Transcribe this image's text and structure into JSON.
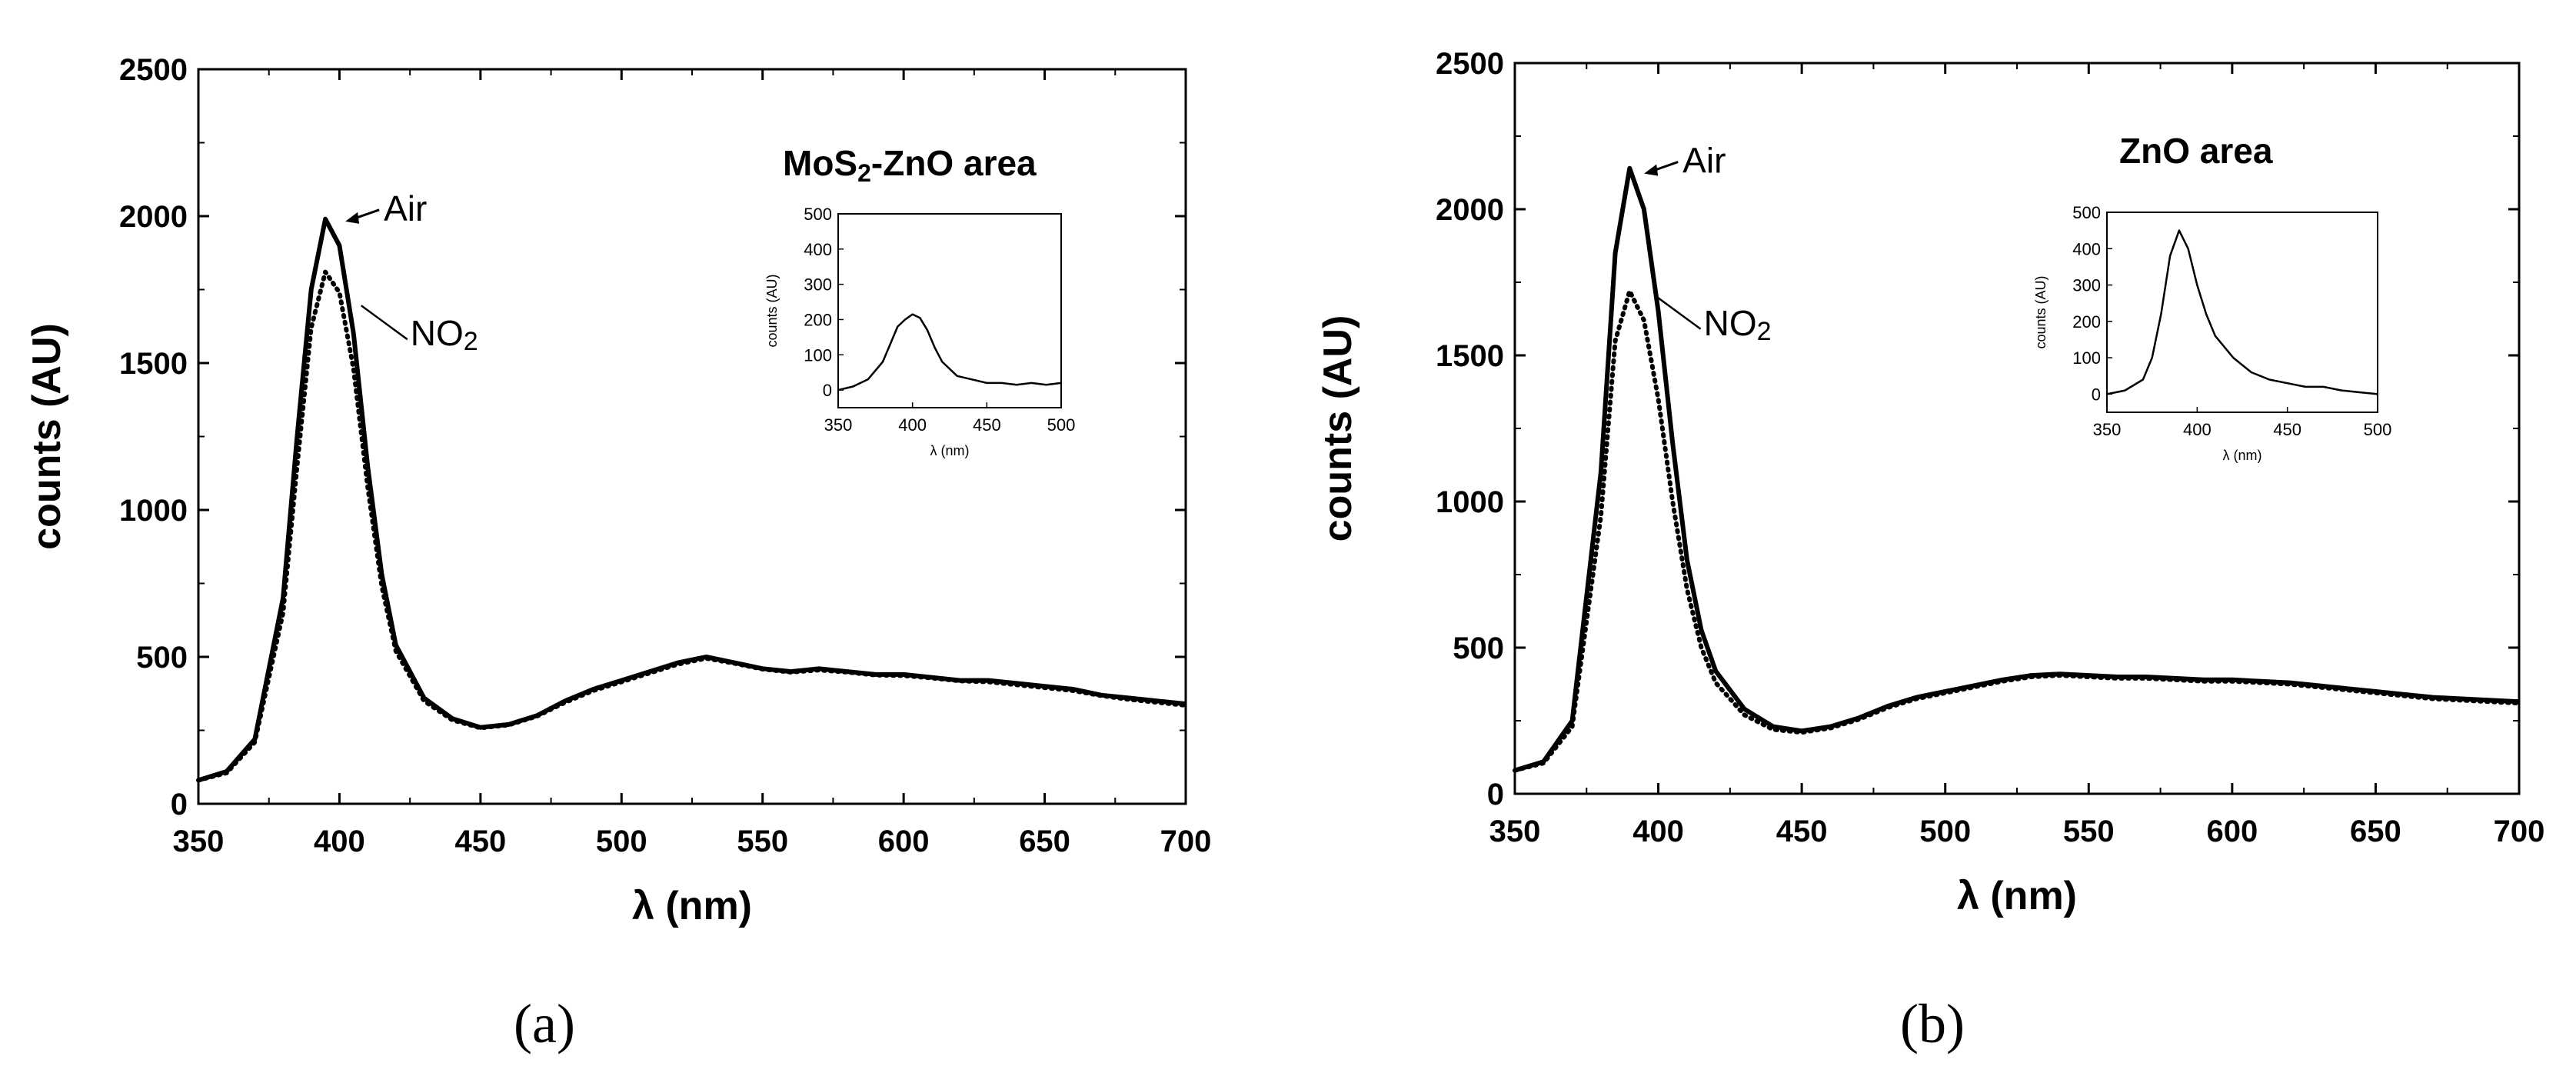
{
  "chart_data": [
    {
      "type": "line",
      "panel_label": "(a)",
      "title": "MoS2-ZnO area",
      "title_main": "MoS",
      "title_sub": "2",
      "title_rest": "-ZnO area",
      "xlabel": "λ (nm)",
      "ylabel": "counts (AU)",
      "xlim": [
        350,
        700
      ],
      "ylim": [
        0,
        2500
      ],
      "xticks": [
        350,
        400,
        450,
        500,
        550,
        600,
        650,
        700
      ],
      "yticks": [
        0,
        500,
        1000,
        1500,
        2000,
        2500
      ],
      "grid": false,
      "series": [
        {
          "name": "Air",
          "style": "solid",
          "x": [
            350,
            360,
            370,
            380,
            385,
            390,
            395,
            400,
            405,
            410,
            415,
            420,
            430,
            440,
            450,
            460,
            470,
            480,
            490,
            500,
            510,
            520,
            530,
            540,
            550,
            560,
            570,
            580,
            590,
            600,
            610,
            620,
            630,
            640,
            650,
            660,
            670,
            680,
            690,
            700
          ],
          "y": [
            80,
            110,
            220,
            700,
            1250,
            1750,
            1990,
            1900,
            1600,
            1150,
            780,
            540,
            360,
            290,
            260,
            270,
            300,
            350,
            390,
            420,
            450,
            480,
            500,
            480,
            460,
            450,
            460,
            450,
            440,
            440,
            430,
            420,
            420,
            410,
            400,
            390,
            370,
            360,
            350,
            340
          ]
        },
        {
          "name": "NO2",
          "style": "dotted",
          "x": [
            350,
            360,
            370,
            380,
            385,
            390,
            395,
            400,
            405,
            410,
            415,
            420,
            430,
            440,
            450,
            460,
            470,
            480,
            490,
            500,
            510,
            520,
            530,
            540,
            550,
            560,
            570,
            580,
            590,
            600,
            610,
            620,
            630,
            640,
            650,
            660,
            670,
            680,
            690,
            700
          ],
          "y": [
            80,
            105,
            210,
            650,
            1150,
            1620,
            1810,
            1740,
            1480,
            1080,
            740,
            520,
            350,
            285,
            258,
            268,
            298,
            345,
            385,
            415,
            445,
            475,
            495,
            478,
            458,
            448,
            455,
            448,
            438,
            436,
            428,
            418,
            415,
            405,
            395,
            385,
            368,
            355,
            345,
            335
          ]
        }
      ],
      "annotations": [
        {
          "text": "Air",
          "x": 401,
          "y": 1990
        },
        {
          "text_main": "NO",
          "text_sub": "2",
          "x": 405,
          "y": 1680
        }
      ],
      "inset": {
        "xlabel": "λ (nm)",
        "ylabel": "counts (AU)",
        "xlim": [
          350,
          500
        ],
        "ylim": [
          -50,
          500
        ],
        "xticks": [
          350,
          400,
          450,
          500
        ],
        "yticks": [
          0,
          100,
          200,
          300,
          400,
          500
        ],
        "x": [
          350,
          360,
          370,
          380,
          385,
          390,
          395,
          400,
          405,
          410,
          415,
          420,
          430,
          440,
          450,
          460,
          470,
          480,
          490,
          500
        ],
        "y": [
          0,
          10,
          30,
          80,
          130,
          180,
          200,
          215,
          205,
          170,
          120,
          80,
          40,
          30,
          20,
          20,
          15,
          20,
          15,
          20
        ]
      }
    },
    {
      "type": "line",
      "panel_label": "(b)",
      "title": "ZnO area",
      "xlabel": "λ (nm)",
      "ylabel": "counts (AU)",
      "xlim": [
        350,
        700
      ],
      "ylim": [
        0,
        2500
      ],
      "xticks": [
        350,
        400,
        450,
        500,
        550,
        600,
        650,
        700
      ],
      "yticks": [
        0,
        500,
        1000,
        1500,
        2000,
        2500
      ],
      "grid": false,
      "series": [
        {
          "name": "Air",
          "style": "solid",
          "x": [
            350,
            360,
            370,
            380,
            385,
            390,
            395,
            400,
            405,
            410,
            415,
            420,
            430,
            440,
            450,
            460,
            470,
            480,
            490,
            500,
            510,
            520,
            530,
            540,
            550,
            560,
            570,
            580,
            590,
            600,
            610,
            620,
            630,
            640,
            650,
            660,
            670,
            680,
            690,
            700
          ],
          "y": [
            80,
            110,
            250,
            1100,
            1850,
            2140,
            2000,
            1650,
            1200,
            800,
            560,
            420,
            290,
            230,
            215,
            230,
            260,
            300,
            330,
            350,
            370,
            390,
            405,
            410,
            405,
            400,
            400,
            395,
            390,
            390,
            385,
            380,
            370,
            360,
            350,
            340,
            330,
            325,
            320,
            315
          ]
        },
        {
          "name": "NO2",
          "style": "dotted",
          "x": [
            350,
            360,
            370,
            380,
            385,
            390,
            395,
            400,
            405,
            410,
            415,
            420,
            430,
            440,
            450,
            460,
            470,
            480,
            490,
            500,
            510,
            520,
            530,
            540,
            550,
            560,
            570,
            580,
            590,
            600,
            610,
            620,
            630,
            640,
            650,
            660,
            670,
            680,
            690,
            700
          ],
          "y": [
            80,
            105,
            230,
            950,
            1550,
            1720,
            1620,
            1350,
            1000,
            700,
            500,
            380,
            270,
            220,
            210,
            225,
            255,
            295,
            325,
            345,
            365,
            385,
            400,
            405,
            400,
            395,
            395,
            390,
            385,
            385,
            380,
            375,
            365,
            355,
            345,
            335,
            325,
            320,
            315,
            310
          ]
        }
      ],
      "annotations": [
        {
          "text": "Air",
          "x": 394,
          "y": 2130
        },
        {
          "text_main": "NO",
          "text_sub": "2",
          "x": 396,
          "y": 1690
        }
      ],
      "inset": {
        "xlabel": "λ (nm)",
        "ylabel": "counts (AU)",
        "xlim": [
          350,
          500
        ],
        "ylim": [
          -50,
          500
        ],
        "xticks": [
          350,
          400,
          450,
          500
        ],
        "yticks": [
          0,
          100,
          200,
          300,
          400,
          500
        ],
        "x": [
          350,
          360,
          370,
          375,
          380,
          385,
          390,
          395,
          400,
          405,
          410,
          420,
          430,
          440,
          450,
          460,
          470,
          480,
          490,
          500
        ],
        "y": [
          0,
          10,
          40,
          100,
          220,
          380,
          450,
          400,
          300,
          220,
          160,
          100,
          60,
          40,
          30,
          20,
          20,
          10,
          5,
          0
        ]
      }
    }
  ]
}
